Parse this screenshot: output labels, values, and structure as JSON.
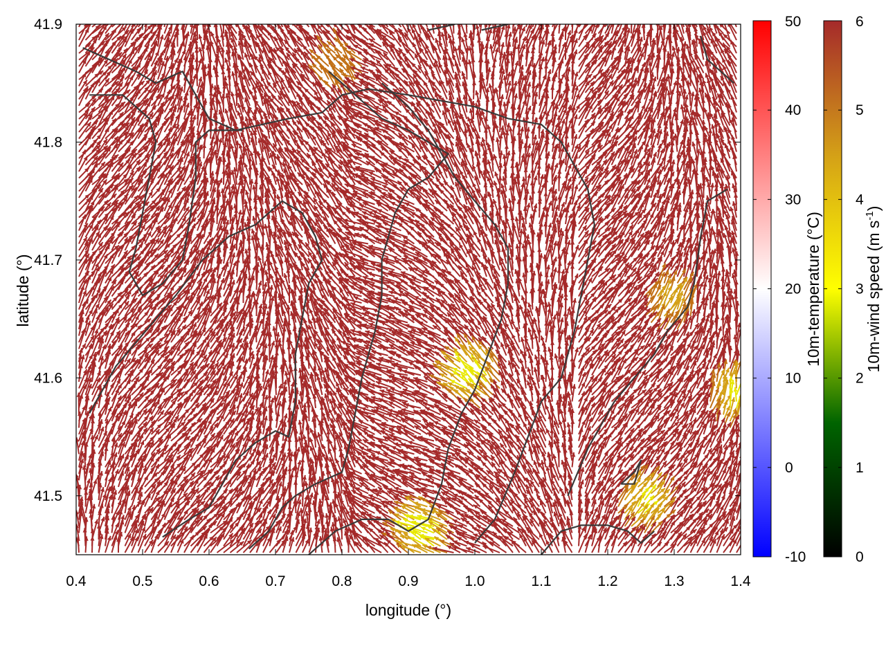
{
  "chart_data": {
    "type": "vector-field",
    "xlabel": "longitude (°)",
    "ylabel": "latitude (°)",
    "xlim": [
      0.4,
      1.4
    ],
    "ylim": [
      41.45,
      41.9
    ],
    "x_ticks": [
      "0.4",
      "0.5",
      "0.6",
      "0.7",
      "0.8",
      "0.9",
      "1.0",
      "1.1",
      "1.2",
      "1.3",
      "1.4"
    ],
    "y_ticks": [
      "41.5",
      "41.6",
      "41.7",
      "41.8",
      "41.9"
    ],
    "grid": false,
    "arrow_color_dominant": "#a52a2a",
    "contour_color": "#3a3a3a",
    "temperature_colorbar": {
      "label": "10m-temperature (°C)",
      "range": [
        -10,
        50
      ],
      "ticks": [
        "-10",
        "0",
        "10",
        "20",
        "30",
        "40",
        "50"
      ],
      "colors": [
        "#0000ff",
        "#ffffff",
        "#ff0000"
      ]
    },
    "wind_colorbar": {
      "label": "10m-wind speed (m s",
      "label_sup": "-1",
      "label_end": ")",
      "range": [
        0,
        6
      ],
      "ticks": [
        "0",
        "1",
        "2",
        "3",
        "4",
        "5",
        "6"
      ],
      "colors": [
        "#000000",
        "#006400",
        "#ffff00",
        "#d4a017",
        "#a52a2a"
      ]
    },
    "calm_zones": [
      {
        "lon": 1.0,
        "lat": 41.6,
        "speed": 4.3
      },
      {
        "lon": 1.25,
        "lat": 41.49,
        "speed": 4.5
      },
      {
        "lon": 0.93,
        "lat": 41.47,
        "speed": 4.2
      },
      {
        "lon": 0.8,
        "lat": 41.86,
        "speed": 5.2
      },
      {
        "lon": 1.29,
        "lat": 41.66,
        "speed": 5.0
      },
      {
        "lon": 1.39,
        "lat": 41.58,
        "speed": 4.5
      }
    ],
    "contours": [
      [
        [
          0.41,
          41.88
        ],
        [
          0.45,
          41.87
        ],
        [
          0.49,
          41.86
        ],
        [
          0.52,
          41.85
        ],
        [
          0.56,
          41.86
        ],
        [
          0.58,
          41.84
        ],
        [
          0.6,
          41.82
        ],
        [
          0.64,
          41.81
        ],
        [
          0.68,
          41.815
        ],
        [
          0.72,
          41.82
        ],
        [
          0.77,
          41.825
        ],
        [
          0.8,
          41.84
        ],
        [
          0.84,
          41.845
        ],
        [
          0.9,
          41.84
        ],
        [
          0.95,
          41.835
        ],
        [
          1.0,
          41.83
        ],
        [
          1.05,
          41.82
        ],
        [
          1.1,
          41.815
        ],
        [
          1.13,
          41.8
        ],
        [
          1.15,
          41.78
        ],
        [
          1.17,
          41.76
        ],
        [
          1.18,
          41.73
        ],
        [
          1.17,
          41.7
        ],
        [
          1.16,
          41.67
        ],
        [
          1.15,
          41.64
        ],
        [
          1.13,
          41.6
        ],
        [
          1.1,
          41.58
        ],
        [
          1.08,
          41.55
        ],
        [
          1.06,
          41.52
        ],
        [
          1.03,
          41.48
        ],
        [
          1.0,
          41.46
        ]
      ],
      [
        [
          0.42,
          41.84
        ],
        [
          0.47,
          41.84
        ],
        [
          0.51,
          41.82
        ],
        [
          0.52,
          41.8
        ],
        [
          0.51,
          41.77
        ],
        [
          0.5,
          41.74
        ],
        [
          0.49,
          41.71
        ],
        [
          0.48,
          41.69
        ],
        [
          0.5,
          41.67
        ],
        [
          0.53,
          41.68
        ],
        [
          0.56,
          41.7
        ],
        [
          0.57,
          41.73
        ],
        [
          0.58,
          41.77
        ],
        [
          0.58,
          41.8
        ],
        [
          0.6,
          41.81
        ],
        [
          0.65,
          41.81
        ]
      ],
      [
        [
          0.42,
          41.57
        ],
        [
          0.44,
          41.59
        ],
        [
          0.46,
          41.61
        ],
        [
          0.49,
          41.63
        ],
        [
          0.52,
          41.65
        ],
        [
          0.55,
          41.67
        ],
        [
          0.59,
          41.7
        ],
        [
          0.63,
          41.72
        ],
        [
          0.67,
          41.73
        ],
        [
          0.71,
          41.75
        ],
        [
          0.74,
          41.74
        ],
        [
          0.76,
          41.72
        ],
        [
          0.77,
          41.7
        ],
        [
          0.75,
          41.68
        ],
        [
          0.74,
          41.65
        ],
        [
          0.73,
          41.62
        ],
        [
          0.73,
          41.58
        ],
        [
          0.72,
          41.55
        ],
        [
          0.7,
          41.555
        ],
        [
          0.67,
          41.545
        ],
        [
          0.64,
          41.53
        ],
        [
          0.62,
          41.51
        ],
        [
          0.6,
          41.49
        ],
        [
          0.57,
          41.48
        ],
        [
          0.53,
          41.465
        ]
      ],
      [
        [
          0.78,
          41.86
        ],
        [
          0.82,
          41.84
        ],
        [
          0.86,
          41.82
        ],
        [
          0.9,
          41.81
        ],
        [
          0.93,
          41.8
        ],
        [
          0.96,
          41.79
        ],
        [
          0.93,
          41.77
        ],
        [
          0.9,
          41.76
        ],
        [
          0.88,
          41.74
        ],
        [
          0.87,
          41.72
        ],
        [
          0.86,
          41.7
        ],
        [
          0.86,
          41.67
        ],
        [
          0.85,
          41.64
        ],
        [
          0.84,
          41.62
        ],
        [
          0.83,
          41.6
        ],
        [
          0.82,
          41.57
        ],
        [
          0.81,
          41.54
        ],
        [
          0.8,
          41.52
        ],
        [
          0.76,
          41.51
        ],
        [
          0.73,
          41.5
        ],
        [
          0.71,
          41.49
        ],
        [
          0.69,
          41.47
        ],
        [
          0.66,
          41.455
        ]
      ],
      [
        [
          0.75,
          41.45
        ],
        [
          0.79,
          41.47
        ],
        [
          0.83,
          41.48
        ],
        [
          0.87,
          41.48
        ],
        [
          0.9,
          41.47
        ],
        [
          0.93,
          41.48
        ],
        [
          0.95,
          41.51
        ],
        [
          0.96,
          41.54
        ],
        [
          0.98,
          41.57
        ],
        [
          1.0,
          41.59
        ],
        [
          1.02,
          41.62
        ],
        [
          1.04,
          41.65
        ],
        [
          1.05,
          41.68
        ],
        [
          1.05,
          41.71
        ],
        [
          1.03,
          41.73
        ],
        [
          1.0,
          41.75
        ],
        [
          0.97,
          41.77
        ],
        [
          0.95,
          41.79
        ],
        [
          0.93,
          41.81
        ],
        [
          0.9,
          41.83
        ],
        [
          0.86,
          41.85
        ]
      ],
      [
        [
          1.1,
          41.45
        ],
        [
          1.13,
          41.47
        ],
        [
          1.16,
          41.475
        ],
        [
          1.2,
          41.475
        ],
        [
          1.23,
          41.47
        ],
        [
          1.25,
          41.46
        ],
        [
          1.27,
          41.47
        ]
      ],
      [
        [
          1.22,
          41.51
        ],
        [
          1.24,
          41.52
        ],
        [
          1.25,
          41.53
        ],
        [
          1.24,
          41.51
        ],
        [
          1.22,
          41.51
        ]
      ],
      [
        [
          1.14,
          41.5
        ],
        [
          1.17,
          41.54
        ],
        [
          1.19,
          41.56
        ],
        [
          1.21,
          41.58
        ],
        [
          1.24,
          41.6
        ],
        [
          1.27,
          41.62
        ],
        [
          1.29,
          41.64
        ],
        [
          1.32,
          41.66
        ],
        [
          1.33,
          41.68
        ],
        [
          1.34,
          41.72
        ],
        [
          1.35,
          41.75
        ],
        [
          1.38,
          41.76
        ]
      ],
      [
        [
          1.34,
          41.89
        ],
        [
          1.35,
          41.87
        ],
        [
          1.37,
          41.86
        ],
        [
          1.39,
          41.85
        ]
      ],
      [
        [
          0.93,
          41.895
        ],
        [
          0.97,
          41.9
        ]
      ],
      [
        [
          1.01,
          41.895
        ],
        [
          1.05,
          41.9
        ]
      ]
    ]
  }
}
